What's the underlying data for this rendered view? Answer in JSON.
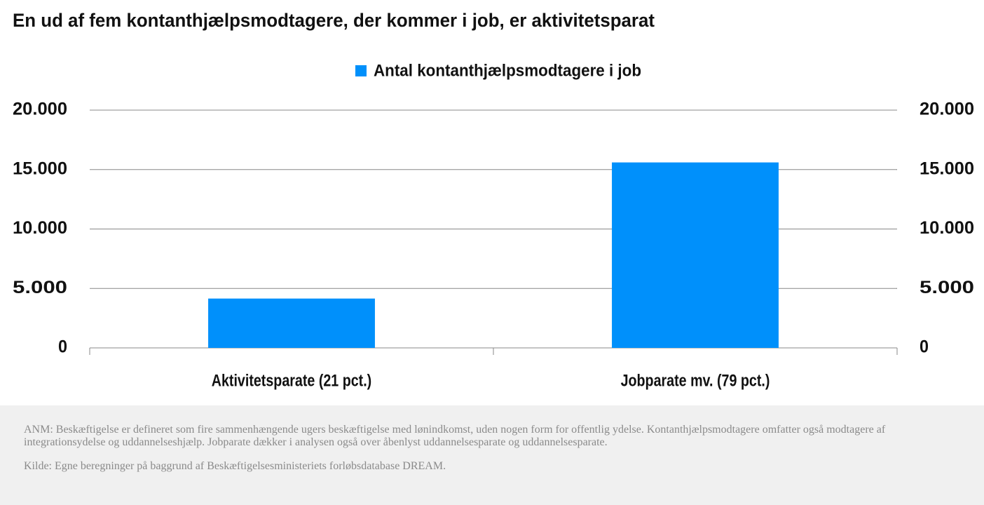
{
  "chart_data": {
    "type": "bar",
    "title": "En ud af fem kontanthjælpsmodtagere, der kommer i job, er aktivitetsparat",
    "categories": [
      "Aktivitetsparate (21 pct.)",
      "Jobparate mv. (79 pct.)"
    ],
    "series": [
      {
        "name": "Antal kontanthjælpsmodtagere i job",
        "color": "#0090fb",
        "values": [
          4150,
          15600
        ]
      }
    ],
    "ylim": [
      0,
      20000
    ],
    "yticks": [
      0,
      {
        "value": 5000,
        "label": "5.000"
      },
      {
        "value": 10000,
        "label": "10.000"
      },
      {
        "value": 15000,
        "label": "15.000"
      },
      {
        "value": 20000,
        "label": "20.000"
      }
    ],
    "y2lim": [
      0,
      20000
    ],
    "y2ticks": [
      0,
      {
        "value": 5000,
        "label": "5.000"
      },
      {
        "value": 10000,
        "label": "10.000"
      },
      {
        "value": 15000,
        "label": "15.000"
      },
      {
        "value": 20000,
        "label": "20.000"
      }
    ],
    "grid": true,
    "legend": "top",
    "notes": [
      "ANM: Beskæftigelse er defineret som fire sammenhængende ugers beskæftigelse med lønindkomst, uden nogen form for offentlig ydelse. Kontanthjælpsmodtagere omfatter også modtagere af integrationsydelse og uddannelseshjælp. Jobparate dækker i analysen også over åbenlyst uddannelsesparate og uddannelsesparate.",
      "Kilde: Egne beregninger på baggrund af Beskæftigelsesministeriets forløbsdatabase DREAM."
    ]
  }
}
